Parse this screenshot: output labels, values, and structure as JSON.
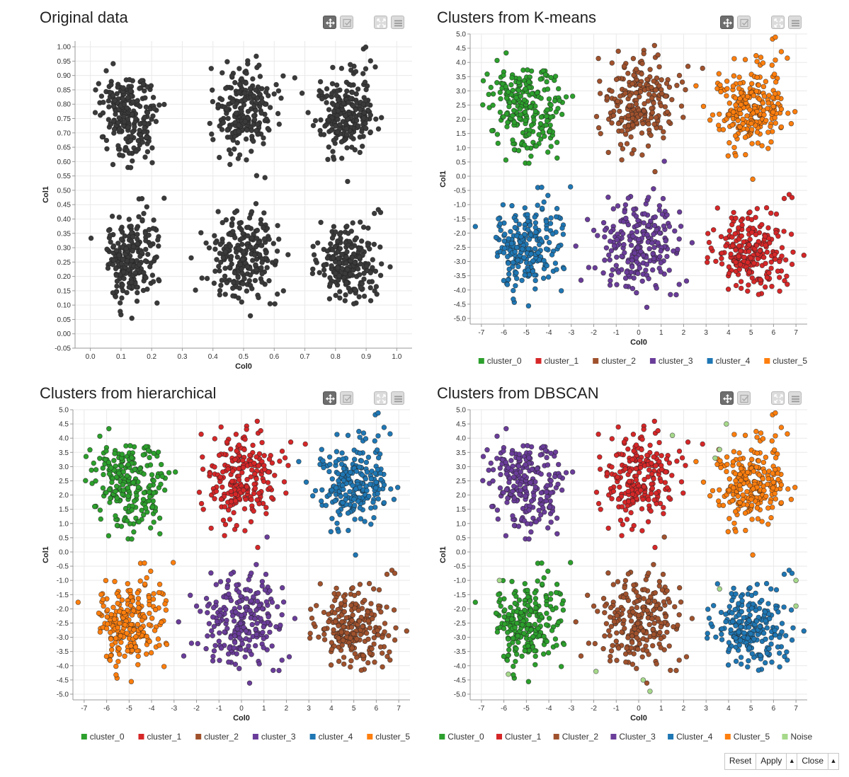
{
  "toolbar_icons": [
    "move-icon",
    "select-icon",
    "expand-icon",
    "menu-icon"
  ],
  "buttons": {
    "reset": "Reset",
    "apply": "Apply",
    "apply_arrow": "▲",
    "close": "Close",
    "close_arrow": "▲"
  },
  "chart_data": [
    {
      "type": "scatter",
      "title": "Original data",
      "xlabel": "Col0",
      "ylabel": "Col1",
      "xlim": [
        -0.05,
        1.05
      ],
      "ylim": [
        -0.05,
        1.02
      ],
      "xticks": [
        "0.0",
        "0.1",
        "0.2",
        "0.3",
        "0.4",
        "0.5",
        "0.6",
        "0.7",
        "0.8",
        "0.9",
        "1.0"
      ],
      "yticks": [
        "-0.05",
        "0.00",
        "0.05",
        "0.10",
        "0.15",
        "0.20",
        "0.25",
        "0.30",
        "0.35",
        "0.40",
        "0.45",
        "0.50",
        "0.55",
        "0.60",
        "0.65",
        "0.70",
        "0.75",
        "0.80",
        "0.85",
        "0.90",
        "0.95",
        "1.00"
      ],
      "grid": true,
      "points_per_blob": 230,
      "centers": [
        {
          "x": 0.125,
          "y": 0.77,
          "sx": 0.045,
          "sy": 0.07
        },
        {
          "x": 0.5,
          "y": 0.78,
          "sx": 0.05,
          "sy": 0.075
        },
        {
          "x": 0.835,
          "y": 0.775,
          "sx": 0.05,
          "sy": 0.075
        },
        {
          "x": 0.13,
          "y": 0.26,
          "sx": 0.045,
          "sy": 0.075
        },
        {
          "x": 0.5,
          "y": 0.27,
          "sx": 0.055,
          "sy": 0.075
        },
        {
          "x": 0.84,
          "y": 0.25,
          "sx": 0.05,
          "sy": 0.07
        }
      ],
      "series": [
        {
          "name": "data",
          "color": "#3a3a3a",
          "blobs": [
            0,
            1,
            2,
            3,
            4,
            5
          ]
        }
      ],
      "legend": []
    },
    {
      "type": "scatter",
      "title": "Clusters from K-means",
      "xlabel": "Col0",
      "ylabel": "Col1",
      "xlim": [
        -7.5,
        7.5
      ],
      "ylim": [
        -5.2,
        5.0
      ],
      "xticks": [
        "-7",
        "-6",
        "-5",
        "-4",
        "-3",
        "-2",
        "-1",
        "0",
        "1",
        "2",
        "3",
        "4",
        "5",
        "6",
        "7"
      ],
      "yticks": [
        "-5.0",
        "-4.5",
        "-4.0",
        "-3.5",
        "-3.0",
        "-2.5",
        "-2.0",
        "-1.5",
        "-1.0",
        "-0.5",
        "0.0",
        "0.5",
        "1.0",
        "1.5",
        "2.0",
        "2.5",
        "3.0",
        "3.5",
        "4.0",
        "4.5",
        "5.0"
      ],
      "grid": true,
      "points_per_blob": 230,
      "centers": [
        {
          "x": -5.0,
          "y": 2.5,
          "sx": 0.8,
          "sy": 0.75
        },
        {
          "x": 0.0,
          "y": 2.6,
          "sx": 0.85,
          "sy": 0.8
        },
        {
          "x": 5.0,
          "y": 2.5,
          "sx": 0.85,
          "sy": 0.8
        },
        {
          "x": -5.0,
          "y": -2.5,
          "sx": 0.8,
          "sy": 0.75
        },
        {
          "x": 0.0,
          "y": -2.4,
          "sx": 0.9,
          "sy": 0.8
        },
        {
          "x": 5.0,
          "y": -2.6,
          "sx": 0.85,
          "sy": 0.75
        }
      ],
      "series": [
        {
          "name": "cluster_0",
          "color": "#2ca02c",
          "blobs": [
            0
          ]
        },
        {
          "name": "cluster_1",
          "color": "#d62728",
          "blobs": [
            5
          ]
        },
        {
          "name": "cluster_2",
          "color": "#a0522d",
          "blobs": [
            1
          ]
        },
        {
          "name": "cluster_3",
          "color": "#6a3d9a",
          "blobs": [
            4
          ]
        },
        {
          "name": "cluster_4",
          "color": "#1f77b4",
          "blobs": [
            3
          ]
        },
        {
          "name": "cluster_5",
          "color": "#ff7f0e",
          "blobs": [
            2
          ]
        }
      ],
      "legend": [
        "cluster_0",
        "cluster_1",
        "cluster_2",
        "cluster_3",
        "cluster_4",
        "cluster_5"
      ]
    },
    {
      "type": "scatter",
      "title": "Clusters from hierarchical",
      "xlabel": "Col0",
      "ylabel": "Col1",
      "xlim": [
        -7.5,
        7.5
      ],
      "ylim": [
        -5.2,
        5.0
      ],
      "xticks": [
        "-7",
        "-6",
        "-5",
        "-4",
        "-3",
        "-2",
        "-1",
        "0",
        "1",
        "2",
        "3",
        "4",
        "5",
        "6",
        "7"
      ],
      "yticks": [
        "-5.0",
        "-4.5",
        "-4.0",
        "-3.5",
        "-3.0",
        "-2.5",
        "-2.0",
        "-1.5",
        "-1.0",
        "-0.5",
        "0.0",
        "0.5",
        "1.0",
        "1.5",
        "2.0",
        "2.5",
        "3.0",
        "3.5",
        "4.0",
        "4.5",
        "5.0"
      ],
      "grid": true,
      "points_per_blob": 230,
      "centers": [
        {
          "x": -5.0,
          "y": 2.5,
          "sx": 0.8,
          "sy": 0.75
        },
        {
          "x": 0.0,
          "y": 2.6,
          "sx": 0.85,
          "sy": 0.8
        },
        {
          "x": 5.0,
          "y": 2.5,
          "sx": 0.85,
          "sy": 0.8
        },
        {
          "x": -5.0,
          "y": -2.5,
          "sx": 0.8,
          "sy": 0.75
        },
        {
          "x": 0.0,
          "y": -2.4,
          "sx": 0.9,
          "sy": 0.8
        },
        {
          "x": 5.0,
          "y": -2.6,
          "sx": 0.85,
          "sy": 0.75
        }
      ],
      "series": [
        {
          "name": "cluster_0",
          "color": "#2ca02c",
          "blobs": [
            0
          ]
        },
        {
          "name": "cluster_1",
          "color": "#d62728",
          "blobs": [
            1
          ]
        },
        {
          "name": "cluster_2",
          "color": "#a0522d",
          "blobs": [
            5
          ]
        },
        {
          "name": "cluster_3",
          "color": "#6a3d9a",
          "blobs": [
            4
          ]
        },
        {
          "name": "cluster_4",
          "color": "#1f77b4",
          "blobs": [
            2
          ]
        },
        {
          "name": "cluster_5",
          "color": "#ff7f0e",
          "blobs": [
            3
          ]
        }
      ],
      "legend": [
        "cluster_0",
        "cluster_1",
        "cluster_2",
        "cluster_3",
        "cluster_4",
        "cluster_5"
      ]
    },
    {
      "type": "scatter",
      "title": "Clusters from DBSCAN",
      "xlabel": "Col0",
      "ylabel": "Col1",
      "xlim": [
        -7.5,
        7.5
      ],
      "ylim": [
        -5.2,
        5.0
      ],
      "xticks": [
        "-7",
        "-6",
        "-5",
        "-4",
        "-3",
        "-2",
        "-1",
        "0",
        "1",
        "2",
        "3",
        "4",
        "5",
        "6",
        "7"
      ],
      "yticks": [
        "-5.0",
        "-4.5",
        "-4.0",
        "-3.5",
        "-3.0",
        "-2.5",
        "-2.0",
        "-1.5",
        "-1.0",
        "-0.5",
        "0.0",
        "0.5",
        "1.0",
        "1.5",
        "2.0",
        "2.5",
        "3.0",
        "3.5",
        "4.0",
        "4.5",
        "5.0"
      ],
      "grid": true,
      "points_per_blob": 230,
      "centers": [
        {
          "x": -5.0,
          "y": 2.5,
          "sx": 0.8,
          "sy": 0.75
        },
        {
          "x": 0.0,
          "y": 2.6,
          "sx": 0.85,
          "sy": 0.8
        },
        {
          "x": 5.0,
          "y": 2.5,
          "sx": 0.85,
          "sy": 0.8
        },
        {
          "x": -5.0,
          "y": -2.5,
          "sx": 0.8,
          "sy": 0.75
        },
        {
          "x": 0.0,
          "y": -2.4,
          "sx": 0.9,
          "sy": 0.8
        },
        {
          "x": 5.0,
          "y": -2.6,
          "sx": 0.85,
          "sy": 0.75
        }
      ],
      "series": [
        {
          "name": "Cluster_0",
          "color": "#2ca02c",
          "blobs": [
            3
          ]
        },
        {
          "name": "Cluster_1",
          "color": "#d62728",
          "blobs": [
            1
          ]
        },
        {
          "name": "Cluster_2",
          "color": "#a0522d",
          "blobs": [
            4
          ]
        },
        {
          "name": "Cluster_3",
          "color": "#6a3d9a",
          "blobs": [
            0
          ]
        },
        {
          "name": "Cluster_4",
          "color": "#1f77b4",
          "blobs": [
            5
          ]
        },
        {
          "name": "Cluster_5",
          "color": "#ff7f0e",
          "blobs": [
            2
          ]
        },
        {
          "name": "Noise",
          "color": "#a6d98a",
          "blobs": []
        }
      ],
      "noise_points": [
        {
          "x": 1.5,
          "y": 4.1
        },
        {
          "x": 3.9,
          "y": 4.5
        },
        {
          "x": 3.6,
          "y": 3.6
        },
        {
          "x": 3.4,
          "y": 3.3
        },
        {
          "x": -6.2,
          "y": -1.0
        },
        {
          "x": -5.8,
          "y": -4.3
        },
        {
          "x": -1.9,
          "y": -4.2
        },
        {
          "x": 0.2,
          "y": -4.5
        },
        {
          "x": 0.5,
          "y": -4.9
        },
        {
          "x": 7.0,
          "y": -1.0
        },
        {
          "x": 7.0,
          "y": -1.9
        },
        {
          "x": 3.6,
          "y": -1.3
        }
      ],
      "legend": [
        "Cluster_0",
        "Cluster_1",
        "Cluster_2",
        "Cluster_3",
        "Cluster_4",
        "Cluster_5",
        "Noise"
      ]
    }
  ]
}
